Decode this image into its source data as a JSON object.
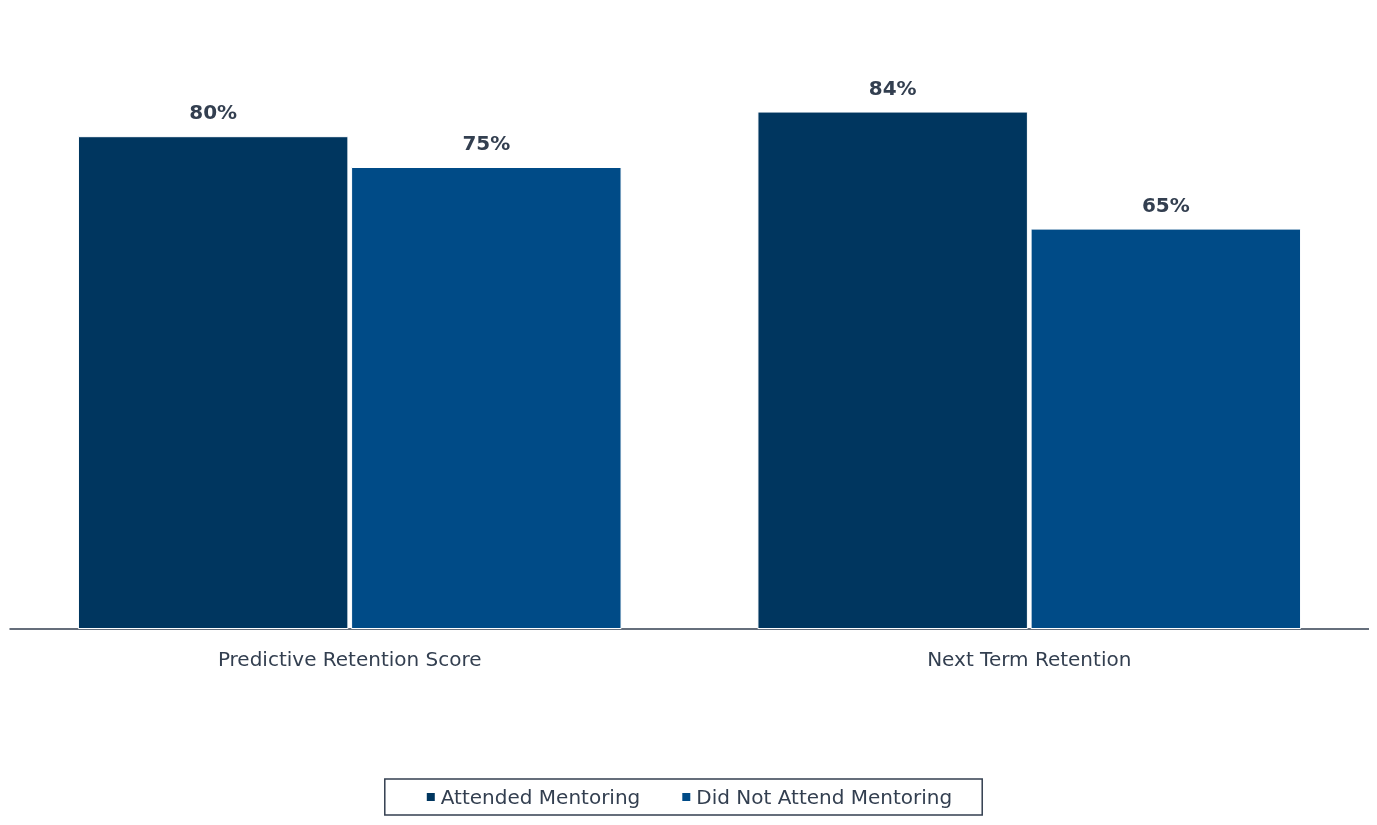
{
  "chart_data": {
    "type": "bar",
    "categories": [
      "Predictive Retention Score",
      "Next Term Retention"
    ],
    "series": [
      {
        "name": "Attended Mentoring",
        "color": "#00365f",
        "values": [
          80,
          84
        ],
        "value_labels": [
          "80%",
          "84%"
        ]
      },
      {
        "name": "Did Not Attend Mentoring",
        "color": "#004b87",
        "values": [
          75,
          65
        ],
        "value_labels": [
          "75%",
          "65%"
        ]
      }
    ],
    "legend": "bottom"
  }
}
